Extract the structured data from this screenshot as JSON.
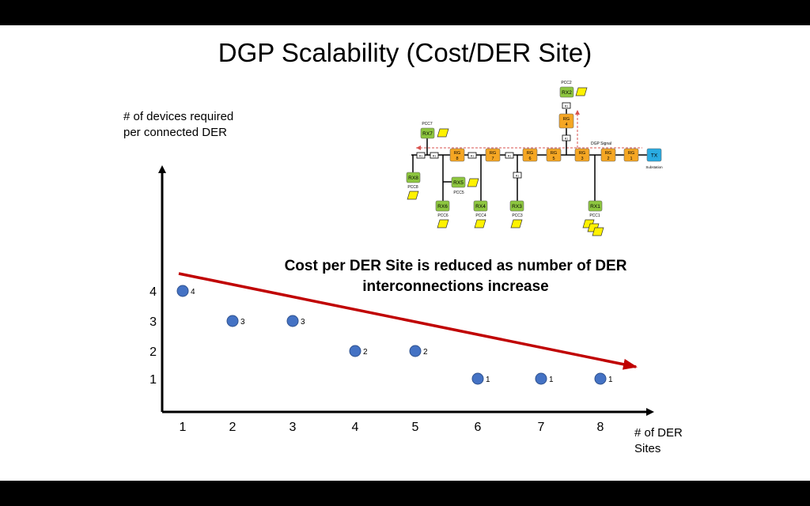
{
  "title": "DGP Scalability (Cost/DER Site)",
  "chart_data": {
    "type": "scatter",
    "title": "DGP Scalability (Cost/DER Site)",
    "ylabel": "# of devices required per connected DER",
    "xlabel": "# of DER Sites",
    "x": [
      1,
      2,
      3,
      4,
      5,
      6,
      7,
      8
    ],
    "y": [
      4,
      3,
      3,
      2,
      2,
      1,
      1,
      1
    ],
    "data_labels": [
      "4",
      "3",
      "3",
      "2",
      "2",
      "1",
      "1",
      "1"
    ],
    "x_ticks": [
      "1",
      "2",
      "3",
      "4",
      "5",
      "6",
      "7",
      "8"
    ],
    "y_ticks": [
      "1",
      "2",
      "3",
      "4"
    ],
    "point_color": "#4472C4",
    "trend_arrow_color": "#C00000",
    "annotation": "Cost per DER Site is reduced as number of DER interconnections increase",
    "grid": false
  },
  "diagram": {
    "nodes_rg": [
      "RG 8",
      "RG 7",
      "RG 6",
      "RG 5",
      "RG 3",
      "RG 2",
      "RG 1",
      "RG 4"
    ],
    "nodes_rx": [
      "RX2",
      "RX7",
      "RX8",
      "RX5",
      "RX6",
      "RX4",
      "RX3",
      "RX1"
    ],
    "pcc_labels": [
      "PCC2",
      "PCC7",
      "PCC8",
      "PCC5",
      "PCC6",
      "PCC4",
      "PCC3",
      "PCC1"
    ],
    "tx_label": "TX",
    "substation_label": "Substation",
    "signal_label": "DGP Signal",
    "relay_label": "R1",
    "colors": {
      "rg": "#F5A623",
      "rx": "#8DC63F",
      "tx": "#29ABE2",
      "der": "#FFF200",
      "signal": "#D9534F"
    }
  }
}
